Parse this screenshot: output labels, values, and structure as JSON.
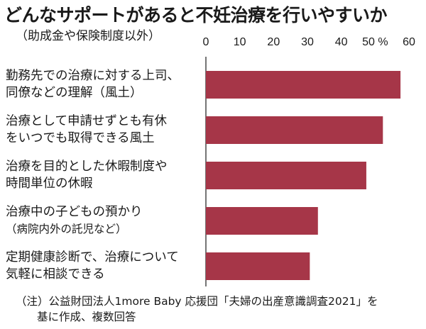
{
  "title": "どんなサポートがあると不妊治療を行いやすいか",
  "subtitle": "（助成金や保険制度以外）",
  "note_lines": [
    "（注）公益財団法人1more Baby 応援団「夫婦の出産意識調査2021」を",
    "基に作成、複数回答"
  ],
  "chart_data": {
    "type": "bar",
    "orientation": "horizontal",
    "title": "どんなサポートがあると不妊治療を行いやすいか",
    "subtitle": "（助成金や保険制度以外）",
    "unit": "%",
    "xlim": [
      0,
      60
    ],
    "ticks": [
      0,
      10,
      20,
      30,
      40,
      50,
      60
    ],
    "tick_labels": [
      "0",
      "10",
      "20",
      "30",
      "40",
      "50 %",
      "60"
    ],
    "bar_color": "#a63648",
    "categories": [
      [
        "勤務先での治療に対する上司、",
        "同僚などの理解（風土）"
      ],
      [
        "治療として申請せずとも有休",
        "をいつでも取得できる風土"
      ],
      [
        "治療を目的とした休暇制度や",
        "時間単位の休暇"
      ],
      [
        "治療中の子どもの預かり",
        "（病院内外の託児など）"
      ],
      [
        "定期健康診断で、治療について",
        "気軽に相談できる"
      ]
    ],
    "values": [
      57.5,
      52.3,
      47.4,
      33.1,
      30.7
    ]
  }
}
